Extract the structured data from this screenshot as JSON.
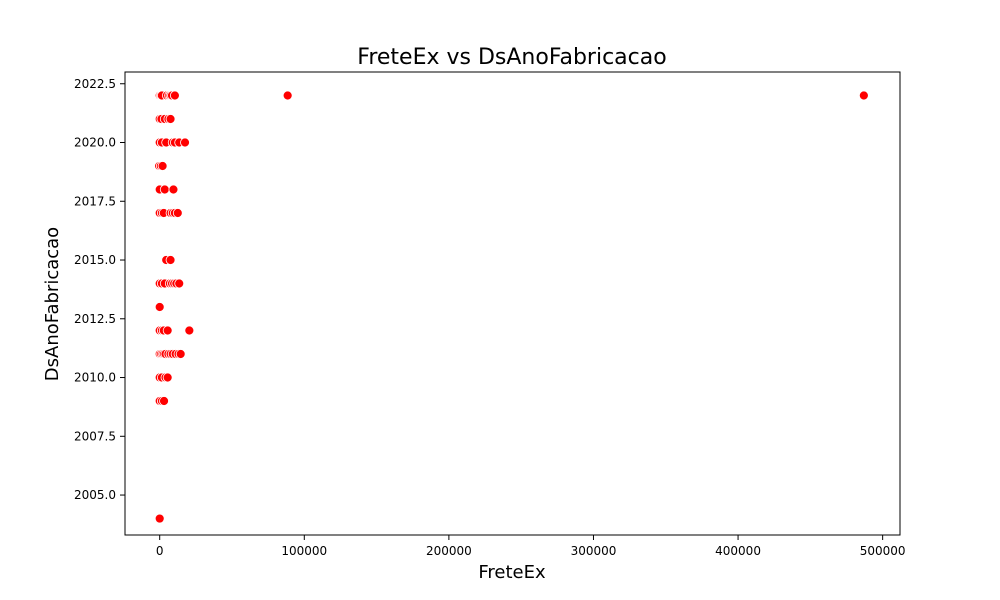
{
  "chart_data": {
    "type": "scatter",
    "title": "FreteEx vs DsAnoFabricacao",
    "xlabel": "FreteEx",
    "ylabel": "DsAnoFabricacao",
    "xlim": [
      -24000,
      512000
    ],
    "ylim": [
      2003.3,
      2023.0
    ],
    "xticks": [
      0,
      100000,
      200000,
      300000,
      400000,
      500000
    ],
    "xtick_labels": [
      "0",
      "100000",
      "200000",
      "300000",
      "400000",
      "500000"
    ],
    "yticks": [
      2005.0,
      2007.5,
      2010.0,
      2012.5,
      2015.0,
      2017.5,
      2020.0,
      2022.5
    ],
    "ytick_labels": [
      "2005.0",
      "2007.5",
      "2010.0",
      "2012.5",
      "2015.0",
      "2017.5",
      "2020.0",
      "2022.5"
    ],
    "grid": false,
    "marker_color": "#ff0000",
    "marker_edge_color": "#ffffff",
    "points": [
      {
        "x": 0,
        "y": 2022
      },
      {
        "x": 800,
        "y": 2022
      },
      {
        "x": 1500,
        "y": 2022
      },
      {
        "x": 5000,
        "y": 2022
      },
      {
        "x": 6500,
        "y": 2022
      },
      {
        "x": 7500,
        "y": 2022
      },
      {
        "x": 8500,
        "y": 2022
      },
      {
        "x": 10500,
        "y": 2022
      },
      {
        "x": 88500,
        "y": 2022
      },
      {
        "x": 487000,
        "y": 2022
      },
      {
        "x": 0,
        "y": 2021
      },
      {
        "x": 1200,
        "y": 2021
      },
      {
        "x": 3500,
        "y": 2021
      },
      {
        "x": 6000,
        "y": 2021
      },
      {
        "x": 7500,
        "y": 2021
      },
      {
        "x": 0,
        "y": 2020
      },
      {
        "x": 1500,
        "y": 2020
      },
      {
        "x": 4500,
        "y": 2020
      },
      {
        "x": 9000,
        "y": 2020
      },
      {
        "x": 10500,
        "y": 2020
      },
      {
        "x": 13500,
        "y": 2020
      },
      {
        "x": 17500,
        "y": 2020
      },
      {
        "x": -400,
        "y": 2019
      },
      {
        "x": 800,
        "y": 2019
      },
      {
        "x": 2000,
        "y": 2019
      },
      {
        "x": 0,
        "y": 2018
      },
      {
        "x": 3500,
        "y": 2018
      },
      {
        "x": 9500,
        "y": 2018
      },
      {
        "x": 0,
        "y": 2017
      },
      {
        "x": 1500,
        "y": 2017
      },
      {
        "x": 2800,
        "y": 2017
      },
      {
        "x": 7500,
        "y": 2017
      },
      {
        "x": 9000,
        "y": 2017
      },
      {
        "x": 10500,
        "y": 2017
      },
      {
        "x": 12500,
        "y": 2017
      },
      {
        "x": 4500,
        "y": 2015
      },
      {
        "x": 7500,
        "y": 2015
      },
      {
        "x": 0,
        "y": 2014
      },
      {
        "x": 1500,
        "y": 2014
      },
      {
        "x": 3500,
        "y": 2014
      },
      {
        "x": 7000,
        "y": 2014
      },
      {
        "x": 8500,
        "y": 2014
      },
      {
        "x": 10000,
        "y": 2014
      },
      {
        "x": 11500,
        "y": 2014
      },
      {
        "x": 13500,
        "y": 2014
      },
      {
        "x": 0,
        "y": 2013
      },
      {
        "x": 0,
        "y": 2012
      },
      {
        "x": 1500,
        "y": 2012
      },
      {
        "x": 2800,
        "y": 2012
      },
      {
        "x": 5500,
        "y": 2012
      },
      {
        "x": 20500,
        "y": 2012
      },
      {
        "x": 0,
        "y": 2011
      },
      {
        "x": 1000,
        "y": 2011
      },
      {
        "x": 2000,
        "y": 2011
      },
      {
        "x": 3000,
        "y": 2011
      },
      {
        "x": 4000,
        "y": 2011
      },
      {
        "x": 6000,
        "y": 2011
      },
      {
        "x": 7500,
        "y": 2011
      },
      {
        "x": 9000,
        "y": 2011
      },
      {
        "x": 11000,
        "y": 2011
      },
      {
        "x": 13000,
        "y": 2011
      },
      {
        "x": 14500,
        "y": 2011
      },
      {
        "x": 0,
        "y": 2010
      },
      {
        "x": 1500,
        "y": 2010
      },
      {
        "x": 4000,
        "y": 2010
      },
      {
        "x": 5500,
        "y": 2010
      },
      {
        "x": 0,
        "y": 2009
      },
      {
        "x": 1500,
        "y": 2009
      },
      {
        "x": 3000,
        "y": 2009
      },
      {
        "x": 0,
        "y": 2004
      }
    ]
  }
}
